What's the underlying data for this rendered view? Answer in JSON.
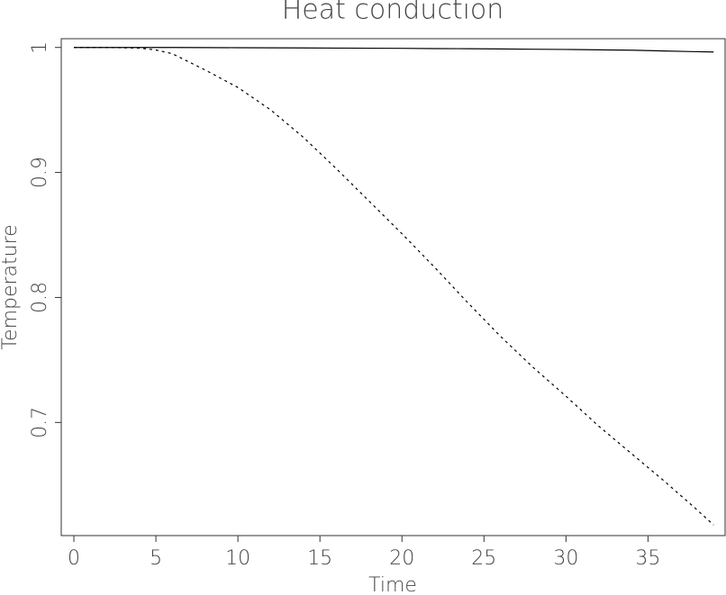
{
  "chart_data": {
    "type": "line",
    "title": "Heat conduction",
    "x_label": "Time",
    "y_label": "Temperature",
    "x": [
      0,
      2,
      4,
      5,
      6,
      8,
      10,
      12,
      14,
      16,
      18,
      20,
      22,
      24,
      26,
      28,
      30,
      32,
      34,
      36,
      38,
      39
    ],
    "series": [
      {
        "color": "#000000",
        "dashed": false,
        "values": [
          1.0,
          1.0,
          1.0,
          1.0,
          1.0,
          0.9999,
          0.9998,
          0.9997,
          0.9996,
          0.9995,
          0.9994,
          0.9993,
          0.9991,
          0.999,
          0.9988,
          0.9986,
          0.9984,
          0.9981,
          0.9978,
          0.9972,
          0.9966,
          0.9964
        ]
      },
      {
        "color": "#000000",
        "dashed": true,
        "values": [
          1.0,
          1.0,
          0.9995,
          0.998,
          0.995,
          0.982,
          0.968,
          0.95,
          0.928,
          0.903,
          0.877,
          0.851,
          0.824,
          0.796,
          0.769,
          0.744,
          0.721,
          0.697,
          0.675,
          0.653,
          0.63,
          0.618
        ]
      }
    ],
    "xlim": [
      -0.77,
      39.7
    ],
    "ylim": [
      0.6095,
      1.007
    ],
    "xticks": [
      0,
      5,
      10,
      15,
      20,
      25,
      30,
      35
    ],
    "yticks": [
      0.7,
      0.8,
      0.9,
      1
    ]
  }
}
